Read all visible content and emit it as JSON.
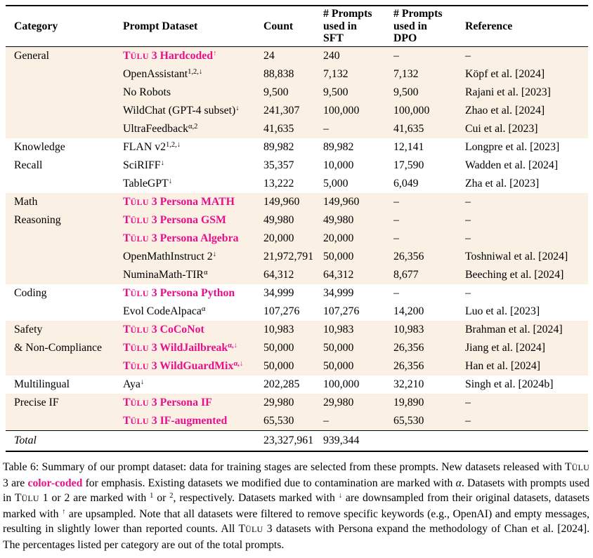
{
  "accent_color": "#E60F8C",
  "shade_color": "#FAF0E4",
  "table": {
    "headers": {
      "category": "Category",
      "dataset": "Prompt Dataset",
      "count": "Count",
      "sft": [
        "# Prompts",
        "used in",
        "SFT"
      ],
      "dpo": [
        "# Prompts",
        "used in",
        "DPO"
      ],
      "reference": "Reference"
    },
    "groups": [
      {
        "category": [
          "General"
        ],
        "shaded": true,
        "rows": [
          {
            "dataset": "Tülu 3 Hardcoded",
            "sup": "↑",
            "highlight": true,
            "count": "24",
            "sft": "240",
            "dpo": "–",
            "reference": "–"
          },
          {
            "dataset": "OpenAssistant",
            "sup": "1,2,↓",
            "highlight": false,
            "count": "88,838",
            "sft": "7,132",
            "dpo": "7,132",
            "reference": "Köpf et al. [2024]"
          },
          {
            "dataset": "No Robots",
            "sup": "",
            "highlight": false,
            "count": "9,500",
            "sft": "9,500",
            "dpo": "9,500",
            "reference": "Rajani et al. [2023]"
          },
          {
            "dataset": "WildChat (GPT-4 subset)",
            "sup": "↓",
            "highlight": false,
            "count": "241,307",
            "sft": "100,000",
            "dpo": "100,000",
            "reference": "Zhao et al. [2024]"
          },
          {
            "dataset": "UltraFeedback",
            "sup": "α,2",
            "highlight": false,
            "count": "41,635",
            "sft": "–",
            "dpo": "41,635",
            "reference": "Cui et al. [2023]"
          }
        ]
      },
      {
        "category": [
          "Knowledge",
          "Recall"
        ],
        "shaded": false,
        "rows": [
          {
            "dataset": "FLAN v2",
            "sup": "1,2,↓",
            "highlight": false,
            "count": "89,982",
            "sft": "89,982",
            "dpo": "12,141",
            "reference": "Longpre et al. [2023]"
          },
          {
            "dataset": "SciRIFF",
            "sup": "↓",
            "highlight": false,
            "count": "35,357",
            "sft": "10,000",
            "dpo": "17,590",
            "reference": "Wadden et al. [2024]"
          },
          {
            "dataset": "TableGPT",
            "sup": "↓",
            "highlight": false,
            "count": "13,222",
            "sft": "5,000",
            "dpo": "6,049",
            "reference": "Zha et al. [2023]"
          }
        ]
      },
      {
        "category": [
          "Math",
          "Reasoning"
        ],
        "shaded": true,
        "rows": [
          {
            "dataset": "Tülu 3 Persona MATH",
            "sup": "",
            "highlight": true,
            "count": "149,960",
            "sft": "149,960",
            "dpo": "–",
            "reference": "–"
          },
          {
            "dataset": "Tülu 3 Persona GSM",
            "sup": "",
            "highlight": true,
            "count": "49,980",
            "sft": "49,980",
            "dpo": "–",
            "reference": "–"
          },
          {
            "dataset": "Tülu 3 Persona Algebra",
            "sup": "",
            "highlight": true,
            "count": "20,000",
            "sft": "20,000",
            "dpo": "–",
            "reference": "–"
          },
          {
            "dataset": "OpenMathInstruct 2",
            "sup": "↓",
            "highlight": false,
            "count": "21,972,791",
            "sft": "50,000",
            "dpo": "26,356",
            "reference": "Toshniwal et al. [2024]"
          },
          {
            "dataset": "NuminaMath-TIR",
            "sup": "α",
            "highlight": false,
            "count": "64,312",
            "sft": "64,312",
            "dpo": "8,677",
            "reference": "Beeching et al. [2024]"
          }
        ]
      },
      {
        "category": [
          "Coding"
        ],
        "shaded": false,
        "rows": [
          {
            "dataset": "Tülu 3 Persona Python",
            "sup": "",
            "highlight": true,
            "count": "34,999",
            "sft": "34,999",
            "dpo": "–",
            "reference": "–"
          },
          {
            "dataset": "Evol CodeAlpaca",
            "sup": "α",
            "highlight": false,
            "count": "107,276",
            "sft": "107,276",
            "dpo": "14,200",
            "reference": "Luo et al. [2023]"
          }
        ]
      },
      {
        "category": [
          "Safety",
          "& Non-Compliance"
        ],
        "shaded": true,
        "rows": [
          {
            "dataset": "Tülu 3 CoCoNot",
            "sup": "",
            "highlight": true,
            "count": "10,983",
            "sft": "10,983",
            "dpo": "10,983",
            "reference": "Brahman et al. [2024]"
          },
          {
            "dataset": "Tülu 3 WildJailbreak",
            "sup": "α,↓",
            "highlight": true,
            "count": "50,000",
            "sft": "50,000",
            "dpo": "26,356",
            "reference": "Jiang et al. [2024]"
          },
          {
            "dataset": "Tülu 3 WildGuardMix",
            "sup": "α,↓",
            "highlight": true,
            "count": "50,000",
            "sft": "50,000",
            "dpo": "26,356",
            "reference": "Han et al. [2024]"
          }
        ]
      },
      {
        "category": [
          "Multilingual"
        ],
        "shaded": false,
        "rows": [
          {
            "dataset": "Aya",
            "sup": "↓",
            "highlight": false,
            "count": "202,285",
            "sft": "100,000",
            "dpo": "32,210",
            "reference": "Singh et al. [2024b]"
          }
        ]
      },
      {
        "category": [
          "Precise IF"
        ],
        "shaded": true,
        "rows": [
          {
            "dataset": "Tülu 3 Persona IF",
            "sup": "",
            "highlight": true,
            "count": "29,980",
            "sft": "29,980",
            "dpo": "19,890",
            "reference": "–"
          },
          {
            "dataset": "Tülu 3 IF-augmented",
            "sup": "",
            "highlight": true,
            "count": "65,530",
            "sft": "–",
            "dpo": "65,530",
            "reference": "–"
          }
        ]
      }
    ],
    "total": {
      "label": "Total",
      "count": "23,327,961",
      "sft": "939,344"
    }
  },
  "caption": {
    "segments": [
      [
        "",
        "Table 6: Summary of our prompt dataset: data for training stages are selected from these prompts. New datasets released with "
      ],
      [
        "sc",
        "Tülu"
      ],
      [
        "",
        " 3 are "
      ],
      [
        "hl",
        "color-coded"
      ],
      [
        "",
        " for emphasis. Existing datasets we modified due to contamination are marked with "
      ],
      [
        "it",
        "α"
      ],
      [
        "",
        ". Datasets with prompts used in "
      ],
      [
        "sc",
        "Tülu"
      ],
      [
        "",
        " 1 or 2 are marked with "
      ],
      [
        "sup",
        "1"
      ],
      [
        "",
        " or "
      ],
      [
        "sup",
        "2"
      ],
      [
        "",
        ", respectively. Datasets marked with "
      ],
      [
        "sup",
        "↓"
      ],
      [
        "",
        " are downsampled from their original datasets, datasets marked with "
      ],
      [
        "sup",
        "↑"
      ],
      [
        "",
        " are upsampled. Note that all datasets were filtered to remove specific keywords (e.g., OpenAI) and empty messages, resulting in slightly lower than reported counts. All "
      ],
      [
        "sc",
        "Tülu"
      ],
      [
        "",
        " 3 datasets with Persona expand the methodology of Chan et al. [2024]. The percentages listed per category are out of the total prompts."
      ]
    ]
  }
}
